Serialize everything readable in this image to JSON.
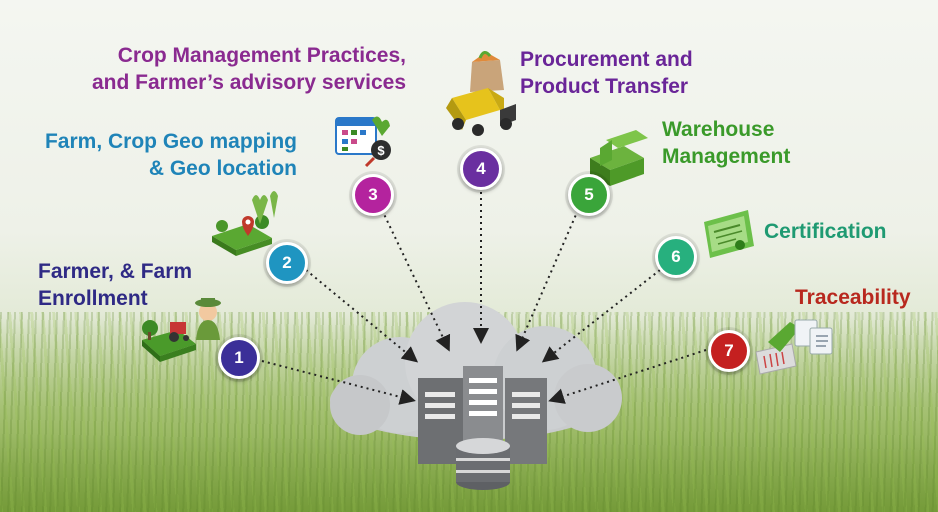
{
  "steps": [
    {
      "number": "1",
      "label_lines": [
        "Farmer, & Farm",
        "Enrollment"
      ],
      "color": "#3b2f98",
      "label_color": "#2f2a85"
    },
    {
      "number": "2",
      "label_lines": [
        "Farm, Crop Geo mapping",
        "& Geo location"
      ],
      "color": "#1f95c1",
      "label_color": "#1f84b8"
    },
    {
      "number": "3",
      "label_lines": [
        "Crop Management Practices,",
        "and Farmer’s advisory services"
      ],
      "color": "#b4239e",
      "label_color": "#8a2a90"
    },
    {
      "number": "4",
      "label_lines": [
        "Procurement and",
        "Product Transfer"
      ],
      "color": "#6a2fa0",
      "label_color": "#6a2598"
    },
    {
      "number": "5",
      "label_lines": [
        "Warehouse",
        "Management"
      ],
      "color": "#3aa53a",
      "label_color": "#3a9a2a"
    },
    {
      "number": "6",
      "label_lines": [
        "Certification"
      ],
      "color": "#27b07e",
      "label_color": "#1f9a72"
    },
    {
      "number": "7",
      "label_lines": [
        "Traceability"
      ],
      "color": "#c42020",
      "label_color": "#b8281e"
    }
  ],
  "icons": [
    "farmer-tractor-icon",
    "geo-map-pin-icon",
    "calendar-dollar-icon",
    "truck-produce-icon",
    "warehouse-box-icon",
    "certificate-icon",
    "barcode-scanner-icon",
    "server-database-icon"
  ]
}
